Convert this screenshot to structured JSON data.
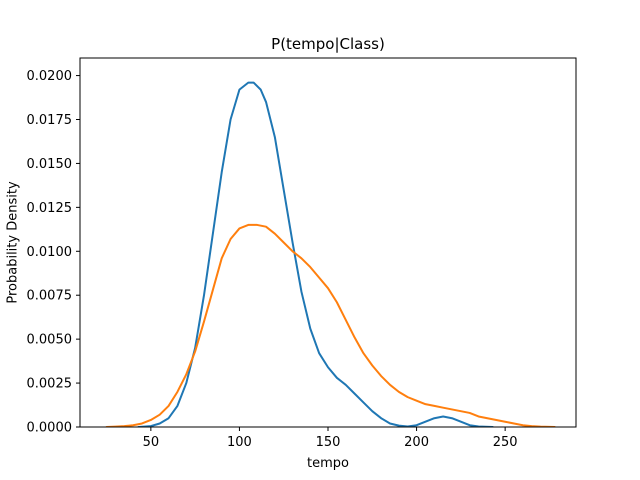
{
  "chart_data": {
    "type": "line",
    "title": "P(tempo|Class)",
    "xlabel": "tempo",
    "ylabel": "Probability Density",
    "xlim": [
      10,
      290
    ],
    "ylim": [
      0,
      0.021
    ],
    "xticks": [
      50,
      100,
      150,
      200,
      250
    ],
    "xtick_labels": [
      "50",
      "100",
      "150",
      "200",
      "250"
    ],
    "yticks": [
      0,
      0.0025,
      0.005,
      0.0075,
      0.01,
      0.0125,
      0.015,
      0.0175,
      0.02
    ],
    "ytick_labels": [
      "0.0000",
      "0.0025",
      "0.0050",
      "0.0075",
      "0.0100",
      "0.0125",
      "0.0150",
      "0.0175",
      "0.0200"
    ],
    "grid": false,
    "legend": false,
    "series": [
      {
        "color": "#1f77b4",
        "x": [
          43,
          50,
          55,
          60,
          65,
          70,
          75,
          80,
          85,
          90,
          95,
          100,
          105,
          108,
          112,
          115,
          120,
          125,
          130,
          135,
          140,
          145,
          150,
          155,
          160,
          165,
          170,
          175,
          180,
          185,
          190,
          195,
          200,
          205,
          210,
          215,
          220,
          225,
          230,
          235,
          243
        ],
        "y": [
          0.0,
          5e-05,
          0.0002,
          0.0005,
          0.0012,
          0.0025,
          0.0045,
          0.0075,
          0.011,
          0.0145,
          0.0175,
          0.0192,
          0.0196,
          0.0196,
          0.0192,
          0.0185,
          0.0165,
          0.0135,
          0.0105,
          0.0077,
          0.0056,
          0.0042,
          0.0034,
          0.0028,
          0.0024,
          0.0019,
          0.0014,
          0.0009,
          0.0005,
          0.0002,
          8e-05,
          3e-05,
          0.0001,
          0.0003,
          0.0005,
          0.0006,
          0.0005,
          0.0003,
          0.0001,
          3e-05,
          0.0
        ]
      },
      {
        "color": "#ff7f0e",
        "x": [
          25,
          30,
          35,
          40,
          45,
          50,
          55,
          60,
          65,
          70,
          75,
          80,
          85,
          90,
          95,
          100,
          105,
          110,
          115,
          120,
          125,
          130,
          135,
          140,
          145,
          150,
          155,
          160,
          165,
          170,
          175,
          180,
          185,
          190,
          195,
          200,
          205,
          210,
          215,
          220,
          225,
          230,
          235,
          240,
          245,
          250,
          255,
          260,
          265,
          270,
          278
        ],
        "y": [
          0.0,
          2e-05,
          5e-05,
          0.0001,
          0.0002,
          0.0004,
          0.0007,
          0.0012,
          0.002,
          0.003,
          0.0043,
          0.006,
          0.0078,
          0.0096,
          0.0107,
          0.0113,
          0.0115,
          0.0115,
          0.0114,
          0.011,
          0.0105,
          0.01,
          0.0096,
          0.0091,
          0.0085,
          0.0079,
          0.0071,
          0.0061,
          0.0051,
          0.0042,
          0.0035,
          0.0029,
          0.0024,
          0.002,
          0.0017,
          0.0015,
          0.0013,
          0.0012,
          0.0011,
          0.001,
          0.0009,
          0.0008,
          0.0006,
          0.0005,
          0.0004,
          0.0003,
          0.0002,
          0.0001,
          5e-05,
          2e-05,
          0.0
        ]
      }
    ]
  }
}
